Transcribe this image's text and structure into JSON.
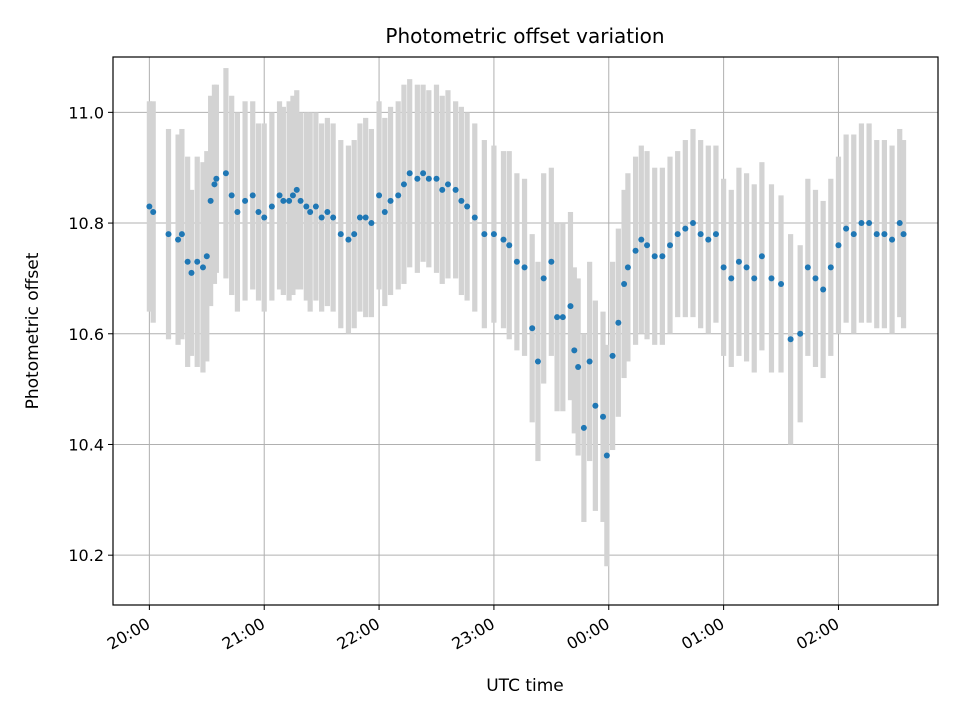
{
  "chart_data": {
    "type": "scatter",
    "title": "Photometric offset variation",
    "xlabel": "UTC time",
    "ylabel": "Photometric offset",
    "x_ticks": [
      "20:00",
      "21:00",
      "22:00",
      "23:00",
      "00:00",
      "01:00",
      "02:00"
    ],
    "y_ticks": [
      "10.2",
      "10.4",
      "10.6",
      "10.8",
      "11.0"
    ],
    "xlim_minutes_since_2000": [
      -19,
      412
    ],
    "ylim": [
      10.11,
      11.1
    ],
    "grid": true,
    "colors": {
      "points": "#1f77b4",
      "errorbars": "#d3d3d3",
      "grid": "#b0b0b0"
    },
    "series": [
      {
        "x_time": [
          "20:00",
          "20:02",
          "20:10",
          "20:15",
          "20:17",
          "20:20",
          "20:22",
          "20:25",
          "20:28",
          "20:30",
          "20:32",
          "20:34",
          "20:35",
          "20:40",
          "20:43",
          "20:46",
          "20:50",
          "20:54",
          "20:57",
          "21:00",
          "21:04",
          "21:08",
          "21:10",
          "21:13",
          "21:15",
          "21:17",
          "21:19",
          "21:22",
          "21:24",
          "21:27",
          "21:30",
          "21:33",
          "21:36",
          "21:40",
          "21:44",
          "21:47",
          "21:50",
          "21:53",
          "21:56",
          "22:00",
          "22:03",
          "22:06",
          "22:10",
          "22:13",
          "22:16",
          "22:20",
          "22:23",
          "22:26",
          "22:30",
          "22:33",
          "22:36",
          "22:40",
          "22:43",
          "22:46",
          "22:50",
          "22:55",
          "23:00",
          "23:05",
          "23:08",
          "23:12",
          "23:16",
          "23:20",
          "23:23",
          "23:26",
          "23:30",
          "23:33",
          "23:36",
          "23:40",
          "23:42",
          "23:44",
          "23:47",
          "23:50",
          "23:53",
          "23:57",
          "23:59",
          "24:02",
          "24:05",
          "24:08",
          "24:10",
          "24:14",
          "24:17",
          "24:20",
          "24:24",
          "24:28",
          "24:32",
          "24:36",
          "24:40",
          "24:44",
          "24:48",
          "24:52",
          "24:56",
          "25:00",
          "25:04",
          "25:08",
          "25:12",
          "25:16",
          "25:20",
          "25:25",
          "25:30",
          "25:35",
          "25:40",
          "25:44",
          "25:48",
          "25:52",
          "25:56",
          "26:00",
          "26:04",
          "26:08",
          "26:12",
          "26:16",
          "26:20",
          "26:24",
          "26:28",
          "26:32",
          "26:34"
        ],
        "y": [
          10.83,
          10.82,
          10.78,
          10.77,
          10.78,
          10.73,
          10.71,
          10.73,
          10.72,
          10.74,
          10.84,
          10.87,
          10.88,
          10.89,
          10.85,
          10.82,
          10.84,
          10.85,
          10.82,
          10.81,
          10.83,
          10.85,
          10.84,
          10.84,
          10.85,
          10.86,
          10.84,
          10.83,
          10.82,
          10.83,
          10.81,
          10.82,
          10.81,
          10.78,
          10.77,
          10.78,
          10.81,
          10.81,
          10.8,
          10.85,
          10.82,
          10.84,
          10.85,
          10.87,
          10.89,
          10.88,
          10.89,
          10.88,
          10.88,
          10.86,
          10.87,
          10.86,
          10.84,
          10.83,
          10.81,
          10.78,
          10.78,
          10.77,
          10.76,
          10.73,
          10.72,
          10.61,
          10.55,
          10.7,
          10.73,
          10.63,
          10.63,
          10.65,
          10.57,
          10.54,
          10.43,
          10.55,
          10.47,
          10.45,
          10.38,
          10.56,
          10.62,
          10.69,
          10.72,
          10.75,
          10.77,
          10.76,
          10.74,
          10.74,
          10.76,
          10.78,
          10.79,
          10.8,
          10.78,
          10.77,
          10.78,
          10.72,
          10.7,
          10.73,
          10.72,
          10.7,
          10.74,
          10.7,
          10.69,
          10.59,
          10.6,
          10.72,
          10.7,
          10.68,
          10.72,
          10.76,
          10.79,
          10.78,
          10.8,
          10.8,
          10.78,
          10.78,
          10.77,
          10.8,
          10.78
        ],
        "errorbar_halfwidth": [
          0.19,
          0.2,
          0.19,
          0.19,
          0.19,
          0.19,
          0.15,
          0.19,
          0.19,
          0.19,
          0.19,
          0.18,
          0.17,
          0.19,
          0.18,
          0.18,
          0.18,
          0.17,
          0.16,
          0.17,
          0.17,
          0.17,
          0.17,
          0.18,
          0.18,
          0.18,
          0.16,
          0.17,
          0.18,
          0.17,
          0.17,
          0.17,
          0.17,
          0.17,
          0.17,
          0.17,
          0.17,
          0.18,
          0.17,
          0.17,
          0.17,
          0.17,
          0.17,
          0.18,
          0.17,
          0.17,
          0.16,
          0.16,
          0.17,
          0.17,
          0.17,
          0.16,
          0.17,
          0.17,
          0.17,
          0.17,
          0.16,
          0.16,
          0.17,
          0.16,
          0.16,
          0.17,
          0.18,
          0.19,
          0.17,
          0.17,
          0.17,
          0.17,
          0.15,
          0.16,
          0.17,
          0.18,
          0.19,
          0.19,
          0.2,
          0.17,
          0.17,
          0.17,
          0.17,
          0.17,
          0.17,
          0.17,
          0.16,
          0.16,
          0.16,
          0.15,
          0.16,
          0.17,
          0.17,
          0.17,
          0.16,
          0.16,
          0.16,
          0.17,
          0.17,
          0.17,
          0.17,
          0.17,
          0.16,
          0.19,
          0.16,
          0.16,
          0.16,
          0.16,
          0.16,
          0.16,
          0.17,
          0.18,
          0.18,
          0.18,
          0.17,
          0.17,
          0.17,
          0.17,
          0.17
        ]
      }
    ]
  }
}
